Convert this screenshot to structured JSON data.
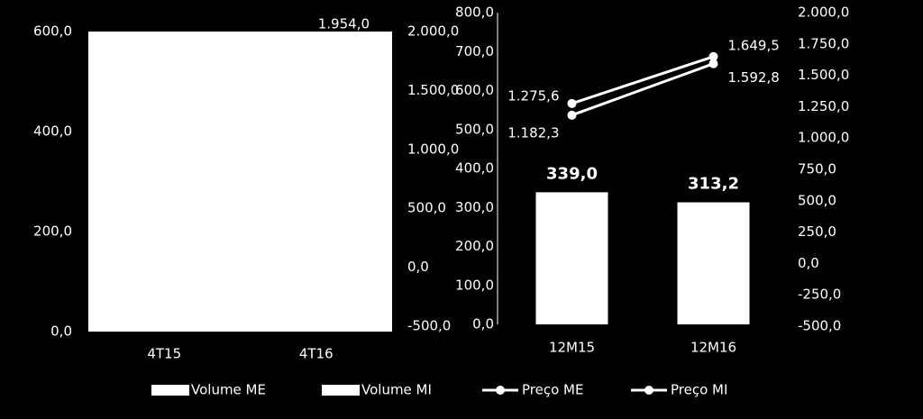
{
  "chart_data": [
    {
      "type": "line",
      "categories": [
        "4T15",
        "4T16"
      ],
      "ylim": [
        0,
        600
      ],
      "yticks": [
        {
          "value": 0,
          "label": "0,0"
        },
        {
          "value": 200,
          "label": "200,0"
        },
        {
          "value": 400,
          "label": "400,0"
        },
        {
          "value": 600,
          "label": "600,0"
        }
      ],
      "y2lim": [
        -500,
        2000
      ],
      "y2ticks": [
        {
          "value": -500,
          "label": "-500,0"
        },
        {
          "value": 0,
          "label": "0,0"
        },
        {
          "value": 500,
          "label": "500,0"
        },
        {
          "value": 1000,
          "label": "1.000,0"
        },
        {
          "value": 1500,
          "label": "1.500,0"
        },
        {
          "value": 2000,
          "label": "2.000,0"
        }
      ],
      "plot_background": "#ffffff",
      "series": [
        {
          "color": "#ffffff",
          "axis": "y2",
          "values": [
            null,
            1954
          ],
          "value_labels": [
            null,
            "1.954,0"
          ]
        }
      ]
    },
    {
      "type": "bar_line",
      "categories": [
        "12M15",
        "12M16"
      ],
      "ylim": [
        0,
        800
      ],
      "yticks": [
        {
          "value": 0,
          "label": "0,0"
        },
        {
          "value": 100,
          "label": "100,0"
        },
        {
          "value": 200,
          "label": "200,0"
        },
        {
          "value": 300,
          "label": "300,0"
        },
        {
          "value": 400,
          "label": "400,0"
        },
        {
          "value": 500,
          "label": "500,0"
        },
        {
          "value": 600,
          "label": "600,0"
        },
        {
          "value": 700,
          "label": "700,0"
        },
        {
          "value": 800,
          "label": "800,0"
        }
      ],
      "y2lim": [
        -500,
        2000
      ],
      "y2ticks": [
        {
          "value": -500,
          "label": "-500,0"
        },
        {
          "value": -250,
          "label": "-250,0"
        },
        {
          "value": 0,
          "label": "0,0"
        },
        {
          "value": 250,
          "label": "250,0"
        },
        {
          "value": 500,
          "label": "500,0"
        },
        {
          "value": 750,
          "label": "750,0"
        },
        {
          "value": 1000,
          "label": "1.000,0"
        },
        {
          "value": 1250,
          "label": "1.250,0"
        },
        {
          "value": 1500,
          "label": "1.500,0"
        },
        {
          "value": 1750,
          "label": "1.750,0"
        },
        {
          "value": 2000,
          "label": "2.000,0"
        }
      ],
      "series": [
        {
          "name": "Volume ME",
          "kind": "bar",
          "color": "#ffffff",
          "values": [
            339.0,
            313.2
          ],
          "value_labels": [
            "339,0",
            "313,2"
          ]
        },
        {
          "name": "Volume MI",
          "kind": "bar",
          "color": "#ffffff",
          "values": [
            null,
            null
          ]
        },
        {
          "name": "Preço ME",
          "kind": "line",
          "color": "#ffffff",
          "axis": "y2",
          "values": [
            1275.6,
            1649.5
          ],
          "value_labels": [
            "1.275,6",
            "1.649,5"
          ]
        },
        {
          "name": "Preço MI",
          "kind": "line",
          "color": "#ffffff",
          "axis": "y2",
          "values": [
            1182.3,
            1592.8
          ],
          "value_labels": [
            "1.182,3",
            "1.592,8"
          ]
        }
      ]
    }
  ]
}
